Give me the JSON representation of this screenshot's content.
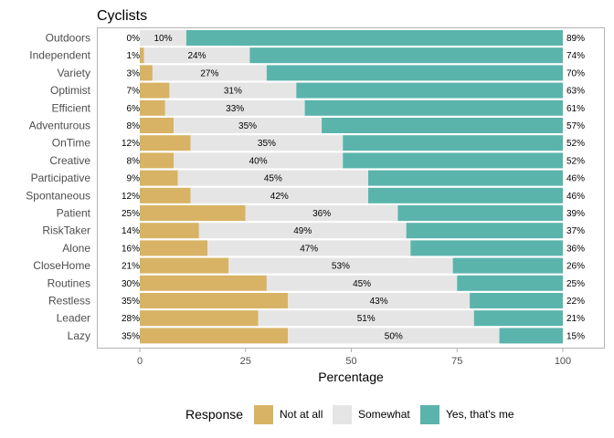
{
  "chart_data": {
    "type": "bar",
    "stacked": true,
    "orientation": "horizontal",
    "title": "Cyclists",
    "xlabel": "Percentage",
    "ylabel": "",
    "xlim": [
      0,
      100
    ],
    "xticks": [
      0,
      25,
      50,
      75,
      100
    ],
    "categories": [
      "Outdoors",
      "Independent",
      "Variety",
      "Optimist",
      "Efficient",
      "Adventurous",
      "OnTime",
      "Creative",
      "Participative",
      "Spontaneous",
      "Patient",
      "RiskTaker",
      "Alone",
      "CloseHome",
      "Routines",
      "Restless",
      "Leader",
      "Lazy"
    ],
    "series": [
      {
        "name": "Not at all",
        "color": "#d8b365",
        "values": [
          0,
          1,
          3,
          7,
          6,
          8,
          12,
          8,
          9,
          12,
          25,
          14,
          16,
          21,
          30,
          35,
          28,
          35
        ]
      },
      {
        "name": "Somewhat",
        "color": "#e5e5e5",
        "values": [
          10,
          24,
          27,
          31,
          33,
          35,
          35,
          40,
          45,
          42,
          36,
          49,
          47,
          53,
          45,
          43,
          51,
          50
        ]
      },
      {
        "name": "Yes, that's me",
        "color": "#5ab4ac",
        "values": [
          89,
          74,
          70,
          63,
          61,
          57,
          52,
          52,
          46,
          46,
          39,
          37,
          36,
          26,
          25,
          22,
          21,
          15
        ]
      }
    ],
    "legend": {
      "title": "Response",
      "position": "bottom"
    }
  }
}
